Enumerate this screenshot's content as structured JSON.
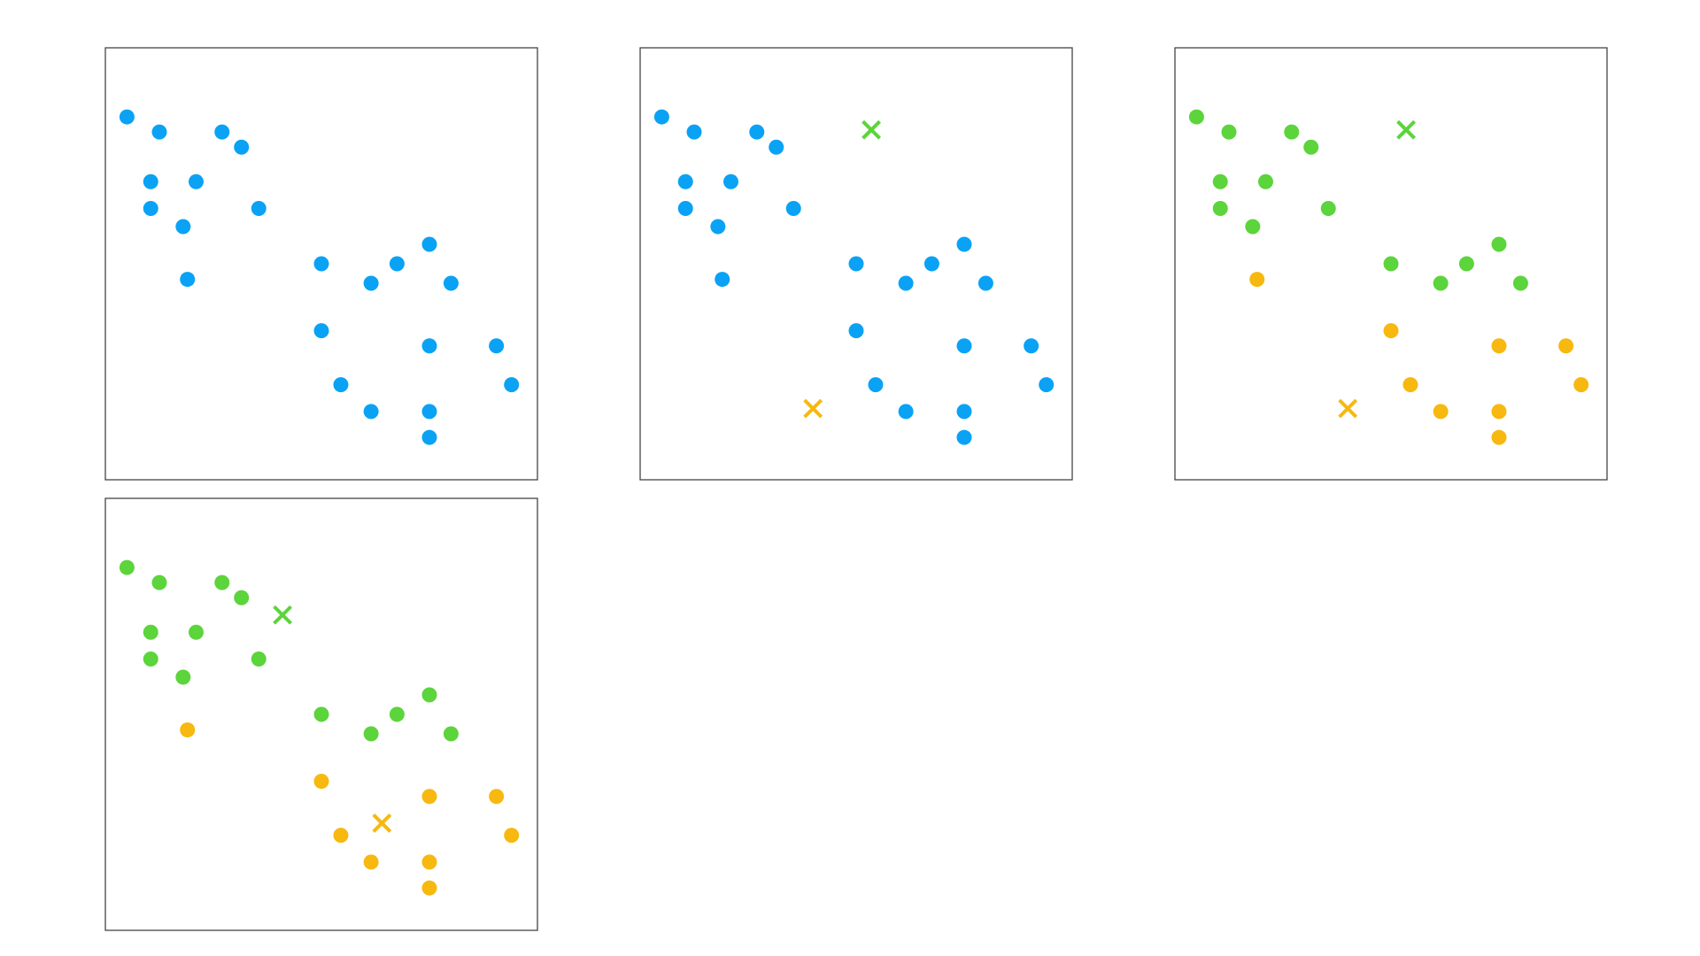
{
  "colors": {
    "unassigned": "#0aa2f5",
    "cluster_1": "#5cd43b",
    "cluster_2": "#f7b80f",
    "frame": "#444444"
  },
  "points": [
    {
      "x": 0.05,
      "y": 0.84
    },
    {
      "x": 0.125,
      "y": 0.805
    },
    {
      "x": 0.27,
      "y": 0.805
    },
    {
      "x": 0.315,
      "y": 0.77
    },
    {
      "x": 0.105,
      "y": 0.69
    },
    {
      "x": 0.21,
      "y": 0.69
    },
    {
      "x": 0.105,
      "y": 0.628
    },
    {
      "x": 0.18,
      "y": 0.586
    },
    {
      "x": 0.355,
      "y": 0.628
    },
    {
      "x": 0.19,
      "y": 0.464
    },
    {
      "x": 0.5,
      "y": 0.5
    },
    {
      "x": 0.615,
      "y": 0.455
    },
    {
      "x": 0.675,
      "y": 0.5
    },
    {
      "x": 0.75,
      "y": 0.545
    },
    {
      "x": 0.8,
      "y": 0.455
    },
    {
      "x": 0.5,
      "y": 0.345
    },
    {
      "x": 0.75,
      "y": 0.31
    },
    {
      "x": 0.905,
      "y": 0.31
    },
    {
      "x": 0.545,
      "y": 0.22
    },
    {
      "x": 0.94,
      "y": 0.22
    },
    {
      "x": 0.615,
      "y": 0.158
    },
    {
      "x": 0.75,
      "y": 0.158
    },
    {
      "x": 0.75,
      "y": 0.098
    }
  ],
  "chart_data": [
    {
      "type": "scatter",
      "panel": 1,
      "xlim": [
        0,
        1
      ],
      "ylim": [
        0,
        1
      ],
      "grid": false,
      "assignments": [
        "u",
        "u",
        "u",
        "u",
        "u",
        "u",
        "u",
        "u",
        "u",
        "u",
        "u",
        "u",
        "u",
        "u",
        "u",
        "u",
        "u",
        "u",
        "u",
        "u",
        "u",
        "u",
        "u"
      ],
      "centroids": []
    },
    {
      "type": "scatter",
      "panel": 2,
      "xlim": [
        0,
        1
      ],
      "ylim": [
        0,
        1
      ],
      "grid": false,
      "assignments": [
        "u",
        "u",
        "u",
        "u",
        "u",
        "u",
        "u",
        "u",
        "u",
        "u",
        "u",
        "u",
        "u",
        "u",
        "u",
        "u",
        "u",
        "u",
        "u",
        "u",
        "u",
        "u",
        "u"
      ],
      "centroids": [
        {
          "cluster": 1,
          "x": 0.535,
          "y": 0.81
        },
        {
          "cluster": 2,
          "x": 0.4,
          "y": 0.165
        }
      ]
    },
    {
      "type": "scatter",
      "panel": 3,
      "xlim": [
        0,
        1
      ],
      "ylim": [
        0,
        1
      ],
      "grid": false,
      "assignments": [
        1,
        1,
        1,
        1,
        1,
        1,
        1,
        1,
        1,
        2,
        1,
        1,
        1,
        1,
        1,
        2,
        2,
        2,
        2,
        2,
        2,
        2,
        2
      ],
      "centroids": [
        {
          "cluster": 1,
          "x": 0.535,
          "y": 0.81
        },
        {
          "cluster": 2,
          "x": 0.4,
          "y": 0.165
        }
      ]
    },
    {
      "type": "scatter",
      "panel": 4,
      "xlim": [
        0,
        1
      ],
      "ylim": [
        0,
        1
      ],
      "grid": false,
      "assignments": [
        1,
        1,
        1,
        1,
        1,
        1,
        1,
        1,
        1,
        2,
        1,
        1,
        1,
        1,
        1,
        2,
        2,
        2,
        2,
        2,
        2,
        2,
        2
      ],
      "centroids": [
        {
          "cluster": 1,
          "x": 0.41,
          "y": 0.73
        },
        {
          "cluster": 2,
          "x": 0.64,
          "y": 0.248
        }
      ]
    }
  ]
}
